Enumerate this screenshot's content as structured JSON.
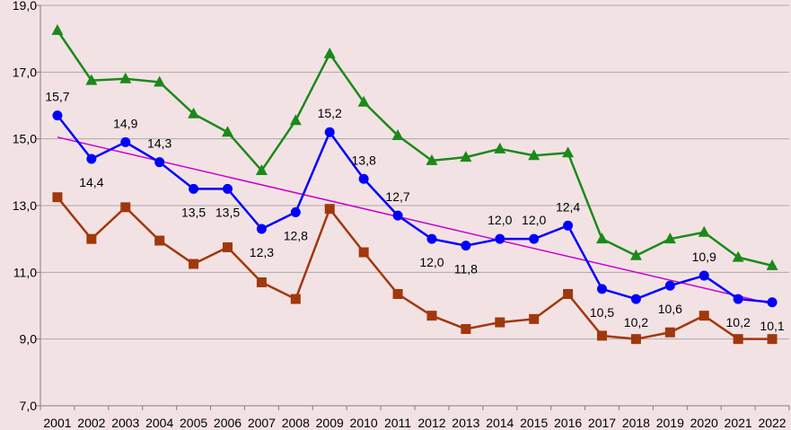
{
  "chart_data": {
    "type": "line",
    "title": "",
    "xlabel": "",
    "ylabel": "",
    "categories": [
      "2001",
      "2002",
      "2003",
      "2004",
      "2005",
      "2006",
      "2007",
      "2008",
      "2009",
      "2010",
      "2011",
      "2012",
      "2013",
      "2014",
      "2015",
      "2016",
      "2017",
      "2018",
      "2019",
      "2020",
      "2021",
      "2022"
    ],
    "ylim": [
      7.0,
      19.0
    ],
    "yticks": [
      7.0,
      9.0,
      11.0,
      13.0,
      15.0,
      17.0,
      19.0
    ],
    "ytick_labels": [
      "7,0",
      "9,0",
      "11,0",
      "13,0",
      "15,0",
      "17,0",
      "19,0"
    ],
    "grid": true,
    "background": "#f3e2e4",
    "series": [
      {
        "name": "green-triangle-series",
        "color": "#1a8a1a",
        "marker": "triangle",
        "values": [
          18.25,
          16.75,
          16.8,
          16.7,
          15.75,
          15.2,
          14.05,
          15.55,
          17.55,
          16.1,
          15.1,
          14.35,
          14.45,
          14.7,
          14.5,
          14.58,
          12.0,
          11.5,
          12.0,
          12.2,
          11.45,
          11.2
        ]
      },
      {
        "name": "blue-circle-series",
        "color": "#0000ff",
        "marker": "circle",
        "values": [
          15.7,
          14.4,
          14.9,
          14.3,
          13.5,
          13.5,
          12.3,
          12.8,
          15.2,
          13.8,
          12.7,
          12.0,
          11.8,
          12.0,
          12.0,
          12.4,
          10.5,
          10.2,
          10.6,
          10.9,
          10.2,
          10.1
        ],
        "labels": [
          "15,7",
          "14,4",
          "14,9",
          "14,3",
          "13,5",
          "13,5",
          "12,3",
          "12,8",
          "15,2",
          "13,8",
          "12,7",
          "12,0",
          "11,8",
          "12,0",
          "12,0",
          "12,4",
          "10,5",
          "10,2",
          "10,6",
          "10,9",
          "10,2",
          "10,1"
        ],
        "label_positions": [
          "above",
          "below",
          "above",
          "above",
          "below",
          "below",
          "below",
          "below",
          "above",
          "above",
          "above",
          "below",
          "below",
          "above",
          "above",
          "above",
          "below",
          "below",
          "below",
          "above",
          "below",
          "below"
        ]
      },
      {
        "name": "brown-square-series",
        "color": "#a0380c",
        "marker": "square",
        "values": [
          13.25,
          12.0,
          12.95,
          11.95,
          11.25,
          11.75,
          10.7,
          10.2,
          12.9,
          11.6,
          10.35,
          9.7,
          9.3,
          9.5,
          9.6,
          10.35,
          9.1,
          9.0,
          9.2,
          9.7,
          9.0,
          9.0
        ]
      }
    ],
    "trendline": {
      "name": "linear-trend",
      "color": "#cc00cc",
      "start_value": 15.05,
      "end_value": 10.05
    }
  }
}
